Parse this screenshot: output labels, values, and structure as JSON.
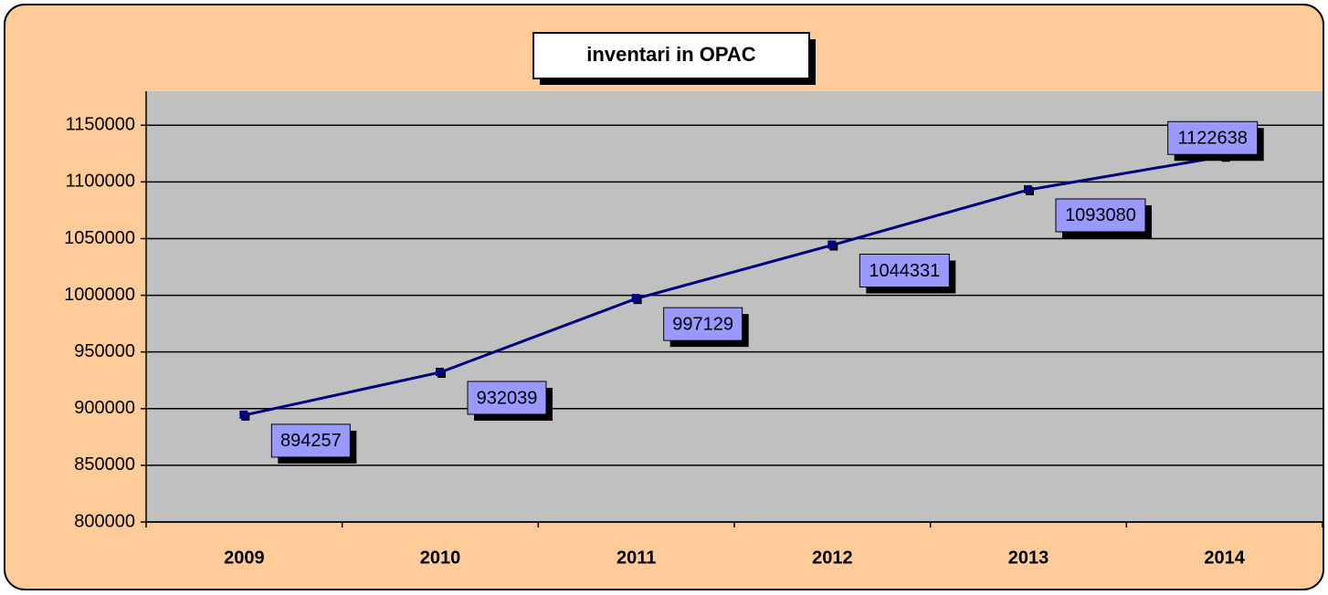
{
  "chart_data": {
    "type": "line",
    "title": "inventari in OPAC",
    "categories": [
      "2009",
      "2010",
      "2011",
      "2012",
      "2013",
      "2014"
    ],
    "series": [
      {
        "name": null,
        "color": "#000080",
        "values": [
          894257,
          932039,
          997129,
          1044331,
          1093080,
          1122638
        ]
      }
    ],
    "ylim": [
      800000,
      1180000
    ],
    "yticks": [
      800000,
      850000,
      900000,
      950000,
      1000000,
      1050000,
      1100000,
      1150000
    ],
    "grid": true
  }
}
